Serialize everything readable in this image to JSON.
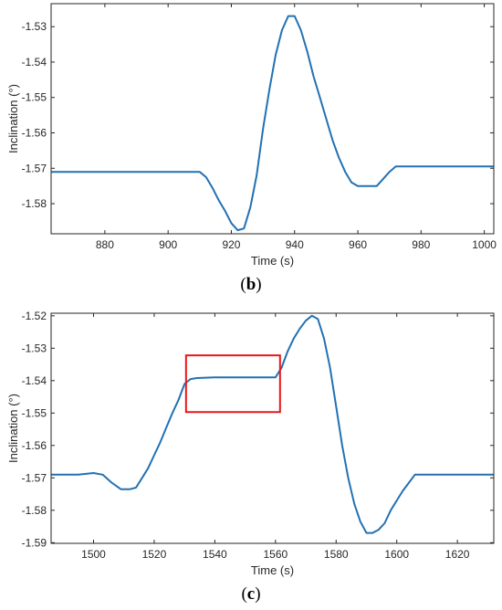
{
  "chart_data": [
    {
      "type": "line",
      "caption_open": "(",
      "caption_letter": "b",
      "caption_close": ")",
      "xlabel": "Time (s)",
      "ylabel": "Inclination (°)",
      "xlim": [
        863,
        1003
      ],
      "ylim": [
        -1.5885,
        -1.5235
      ],
      "xticks": [
        880,
        900,
        920,
        940,
        960,
        980,
        1000
      ],
      "yticks": [
        -1.53,
        -1.54,
        -1.55,
        -1.56,
        -1.57,
        -1.58
      ],
      "line_color": "#2271B3",
      "series": [
        {
          "x": [
            863,
            880,
            900,
            910,
            912,
            914,
            916,
            918,
            920,
            922,
            924,
            926,
            928,
            930,
            932,
            934,
            936,
            938,
            940,
            942,
            944,
            946,
            948,
            950,
            952,
            954,
            956,
            958,
            960,
            962,
            964,
            966,
            968,
            970,
            972,
            980,
            990,
            1000,
            1003
          ],
          "y": [
            -1.571,
            -1.571,
            -1.571,
            -1.571,
            -1.5725,
            -1.5755,
            -1.579,
            -1.582,
            -1.5855,
            -1.5875,
            -1.587,
            -1.581,
            -1.572,
            -1.559,
            -1.548,
            -1.538,
            -1.531,
            -1.527,
            -1.527,
            -1.531,
            -1.537,
            -1.544,
            -1.55,
            -1.556,
            -1.562,
            -1.567,
            -1.571,
            -1.574,
            -1.575,
            -1.575,
            -1.575,
            -1.575,
            -1.573,
            -1.571,
            -1.5695,
            -1.5695,
            -1.5695,
            -1.5695,
            -1.5695
          ]
        }
      ],
      "annotations": []
    },
    {
      "type": "line",
      "caption_open": "(",
      "caption_letter": "c",
      "caption_close": ")",
      "xlabel": "Time (s)",
      "ylabel": "Inclination (°)",
      "xlim": [
        1486,
        1632
      ],
      "ylim": [
        -1.5902,
        -1.5192
      ],
      "xticks": [
        1500,
        1520,
        1540,
        1560,
        1580,
        1600,
        1620
      ],
      "yticks": [
        -1.52,
        -1.53,
        -1.54,
        -1.55,
        -1.56,
        -1.57,
        -1.58,
        -1.59
      ],
      "line_color": "#2271B3",
      "series": [
        {
          "x": [
            1486,
            1495,
            1500,
            1503,
            1506,
            1509,
            1512,
            1514,
            1516,
            1518,
            1520,
            1522,
            1524,
            1526,
            1528,
            1530,
            1532,
            1534,
            1540,
            1550,
            1560,
            1562,
            1564,
            1566,
            1568,
            1570,
            1572,
            1574,
            1576,
            1578,
            1580,
            1582,
            1584,
            1586,
            1588,
            1590,
            1592,
            1594,
            1596,
            1598,
            1600,
            1602,
            1604,
            1606,
            1610,
            1620,
            1632
          ],
          "y": [
            -1.569,
            -1.569,
            -1.5685,
            -1.569,
            -1.5715,
            -1.5735,
            -1.5735,
            -1.573,
            -1.57,
            -1.567,
            -1.563,
            -1.559,
            -1.5545,
            -1.55,
            -1.546,
            -1.541,
            -1.5395,
            -1.5392,
            -1.539,
            -1.539,
            -1.539,
            -1.536,
            -1.531,
            -1.527,
            -1.524,
            -1.5215,
            -1.52,
            -1.521,
            -1.527,
            -1.536,
            -1.548,
            -1.56,
            -1.57,
            -1.578,
            -1.5835,
            -1.587,
            -1.587,
            -1.586,
            -1.584,
            -1.58,
            -1.577,
            -1.574,
            -1.5715,
            -1.569,
            -1.569,
            -1.569,
            -1.569
          ]
        }
      ],
      "annotations": [
        {
          "type": "rectangle",
          "color": "#E8151B",
          "x0": 1530.5,
          "x1": 1561.5,
          "y0": -1.5497,
          "y1": -1.5322
        }
      ]
    }
  ]
}
